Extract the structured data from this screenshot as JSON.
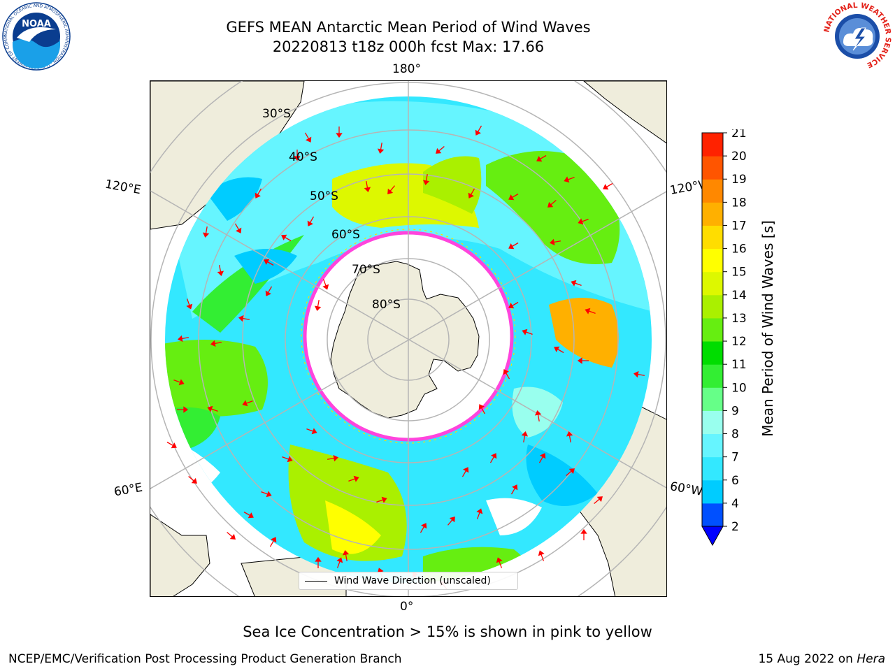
{
  "title_line1": "GEFS MEAN Antarctic Mean Period of Wind Waves",
  "title_line2": "20220813 t18z 000h fcst   Max: 17.66",
  "logos": {
    "left": {
      "icon": "noaa-logo",
      "text": "NOAA",
      "ring_text": "NATIONAL OCEANIC AND ATMOSPHERIC ADMINISTRATION · U.S. DEPARTMENT OF COMMERCE",
      "colors": [
        "#0a3d8f",
        "#1aa0e8",
        "#ffffff"
      ]
    },
    "right": {
      "icon": "nws-logo",
      "ring_text": "NATIONAL WEATHER SERVICE",
      "colors": [
        "#e32119",
        "#1b4ea8",
        "#ffffff"
      ]
    }
  },
  "map": {
    "projection": "south-polar-stereographic",
    "longitude_labels": {
      "top": "180°",
      "bottom": "0°",
      "upper_left": "120°E",
      "lower_left": "60°E",
      "upper_right": "120°W",
      "lower_right": "60°W"
    },
    "latitude_labels": [
      "30°S",
      "40°S",
      "50°S",
      "60°S",
      "70°S",
      "80°S"
    ],
    "colors": {
      "land": "#efeddc",
      "ocean_no_data": "#ffffff",
      "grid": "#b5b5b5",
      "arrows": "#ff0000",
      "sea_ice": "#ff44dd"
    },
    "legend": {
      "label": "Wind Wave Direction (unscaled)"
    },
    "sea_ice_note": "Sea Ice Concentration > 15% is shown in pink to yellow"
  },
  "colorbar": {
    "label": "Mean Period of Wind Waves [s]",
    "ticks": [
      "2",
      "4",
      "6",
      "7",
      "8",
      "9",
      "10",
      "11",
      "12",
      "13",
      "14",
      "15",
      "16",
      "17",
      "18",
      "19",
      "20",
      "21"
    ],
    "colors": [
      "#0050ff",
      "#00ccff",
      "#33e8ff",
      "#66f5ff",
      "#99ffee",
      "#66ff88",
      "#33ee33",
      "#00dd00",
      "#66ee11",
      "#aaf000",
      "#ddf800",
      "#ffff00",
      "#ffdd00",
      "#ffb000",
      "#ff8800",
      "#ff5500",
      "#ff2200",
      "#ff0000"
    ],
    "under_color": "#0000ff"
  },
  "footer": {
    "left": "NCEP/EMC/Verification Post Processing Product Generation Branch",
    "right_prefix": "15 Aug 2022 on ",
    "right_host": "Hera"
  }
}
